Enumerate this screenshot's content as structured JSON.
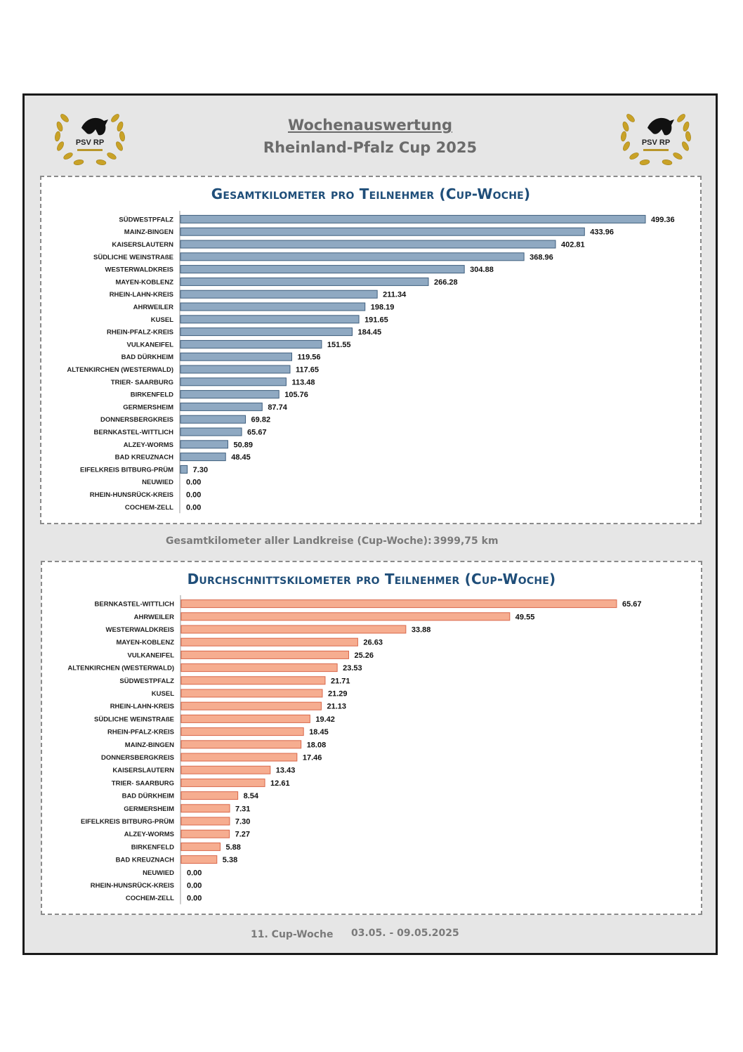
{
  "header": {
    "title": "Wochenauswertung",
    "subtitle": "Rheinland-Pfalz Cup 2025",
    "logo_text": "PSV RP"
  },
  "summary": {
    "total_label": "Gesamtkilometer aller Landkreise (Cup-Woche):",
    "total_value": "3999,75 km"
  },
  "footer": {
    "week_label": "11. Cup-Woche",
    "date_range": "03.05. - 09.05.2025"
  },
  "colors": {
    "chart1_bar": "#8fa9c2",
    "chart1_edge": "#3f5f7e",
    "chart2_bar": "#f6ad90",
    "chart2_edge": "#d9674a"
  },
  "chart_data": [
    {
      "type": "bar",
      "orientation": "horizontal",
      "title": "Gesamtkilometer pro Teilnehmer (Cup-Woche)",
      "categories": [
        "SÜDWESTPFALZ",
        "MAINZ-BINGEN",
        "KAISERSLAUTERN",
        "SÜDLICHE WEINSTRAßE",
        "WESTERWALDKREIS",
        "MAYEN-KOBLENZ",
        "RHEIN-LAHN-KREIS",
        "AHRWEILER",
        "KUSEL",
        "RHEIN-PFALZ-KREIS",
        "VULKANEIFEL",
        "BAD DÜRKHEIM",
        "ALTENKIRCHEN (WESTERWALD)",
        "TRIER- SAARBURG",
        "BIRKENFELD",
        "GERMERSHEIM",
        "DONNERSBERGKREIS",
        "BERNKASTEL-WITTLICH",
        "ALZEY-WORMS",
        "BAD KREUZNACH",
        "EIFELKREIS BITBURG-PRÜM",
        "NEUWIED",
        "RHEIN-HUNSRÜCK-KREIS",
        "COCHEM-ZELL"
      ],
      "values": [
        499.36,
        433.96,
        402.81,
        368.96,
        304.88,
        266.28,
        211.34,
        198.19,
        191.65,
        184.45,
        151.55,
        119.56,
        117.65,
        113.48,
        105.76,
        87.74,
        69.82,
        65.67,
        50.89,
        48.45,
        7.3,
        0.0,
        0.0,
        0.0
      ],
      "labels": [
        "499.36",
        "433.96",
        "402.81",
        "368.96",
        "304.88",
        "266.28",
        "211.34",
        "198.19",
        "191.65",
        "184.45",
        "151.55",
        "119.56",
        "117.65",
        "113.48",
        "105.76",
        "87.74",
        "69.82",
        "65.67",
        "50.89",
        "48.45",
        "7.30",
        "0.00",
        "0.00",
        "0.00"
      ],
      "xlim": [
        0,
        499.36
      ]
    },
    {
      "type": "bar",
      "orientation": "horizontal",
      "title": "Durchschnittskilometer pro Teilnehmer (Cup-Woche)",
      "categories": [
        "BERNKASTEL-WITTLICH",
        "AHRWEILER",
        "WESTERWALDKREIS",
        "MAYEN-KOBLENZ",
        "VULKANEIFEL",
        "ALTENKIRCHEN (WESTERWALD)",
        "SÜDWESTPFALZ",
        "KUSEL",
        "RHEIN-LAHN-KREIS",
        "SÜDLICHE WEINSTRAßE",
        "RHEIN-PFALZ-KREIS",
        "MAINZ-BINGEN",
        "DONNERSBERGKREIS",
        "KAISERSLAUTERN",
        "TRIER- SAARBURG",
        "BAD DÜRKHEIM",
        "GERMERSHEIM",
        "EIFELKREIS BITBURG-PRÜM",
        "ALZEY-WORMS",
        "BIRKENFELD",
        "BAD KREUZNACH",
        "NEUWIED",
        "RHEIN-HUNSRÜCK-KREIS",
        "COCHEM-ZELL"
      ],
      "values": [
        65.67,
        49.55,
        33.88,
        26.63,
        25.26,
        23.53,
        21.71,
        21.29,
        21.13,
        19.42,
        18.45,
        18.08,
        17.46,
        13.43,
        12.61,
        8.54,
        7.31,
        7.3,
        7.27,
        5.88,
        5.38,
        0.0,
        0.0,
        0.0
      ],
      "labels": [
        "65.67",
        "49.55",
        "33.88",
        "26.63",
        "25.26",
        "23.53",
        "21.71",
        "21.29",
        "21.13",
        "19.42",
        "18.45",
        "18.08",
        "17.46",
        "13.43",
        "12.61",
        "8.54",
        "7.31",
        "7.30",
        "7.27",
        "5.88",
        "5.38",
        "0.00",
        "0.00",
        "0.00"
      ],
      "xlim": [
        0,
        65.67
      ]
    }
  ]
}
